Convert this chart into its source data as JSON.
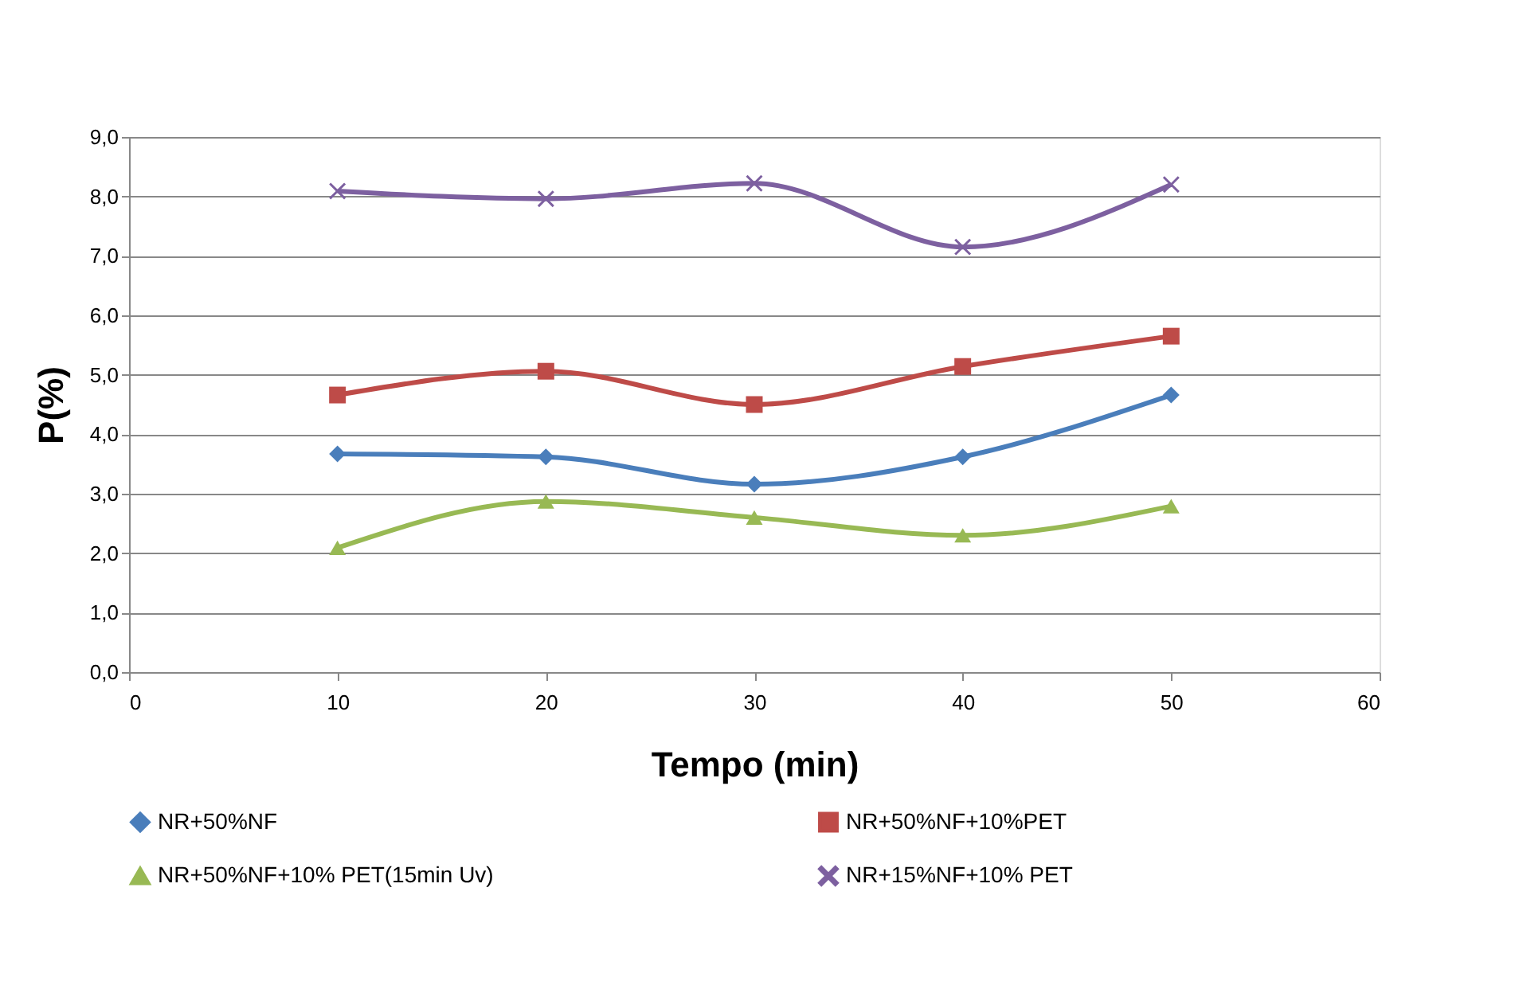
{
  "chart_data": {
    "type": "line",
    "xlabel": "Tempo (min)",
    "ylabel": "P(%)",
    "x": [
      10,
      20,
      30,
      40,
      50
    ],
    "series": [
      {
        "name": "NR+50%NF",
        "color": "#4a7ebb",
        "marker": "diamond",
        "values": [
          3.67,
          3.62,
          3.16,
          3.62,
          4.66
        ]
      },
      {
        "name": "NR+50%NF+10%PET",
        "color": "#be4b48",
        "marker": "square",
        "values": [
          4.66,
          5.06,
          4.5,
          5.14,
          5.65
        ]
      },
      {
        "name": "NR+50%NF+10% PET(15min Uv)",
        "color": "#98b954",
        "marker": "triangle",
        "values": [
          2.09,
          2.87,
          2.6,
          2.3,
          2.79
        ]
      },
      {
        "name": "NR+15%NF+10% PET",
        "color": "#7d60a0",
        "marker": "cross",
        "values": [
          8.09,
          7.96,
          8.22,
          7.15,
          8.2
        ]
      }
    ],
    "xlim": [
      0,
      60
    ],
    "xticks": [
      0,
      10,
      20,
      30,
      40,
      50,
      60
    ],
    "ylim": [
      0,
      9
    ],
    "yticks": [
      {
        "value": 0,
        "label": "0,0"
      },
      {
        "value": 1,
        "label": "1,0"
      },
      {
        "value": 2,
        "label": "2,0"
      },
      {
        "value": 3,
        "label": "3,0"
      },
      {
        "value": 4,
        "label": "4,0"
      },
      {
        "value": 5,
        "label": "5,0"
      },
      {
        "value": 6,
        "label": "6,0"
      },
      {
        "value": 7,
        "label": "7,0"
      },
      {
        "value": 8,
        "label": "8,0"
      },
      {
        "value": 9,
        "label": "9,0"
      }
    ],
    "grid": "y",
    "legend": "bottom",
    "line_style": "solid"
  }
}
